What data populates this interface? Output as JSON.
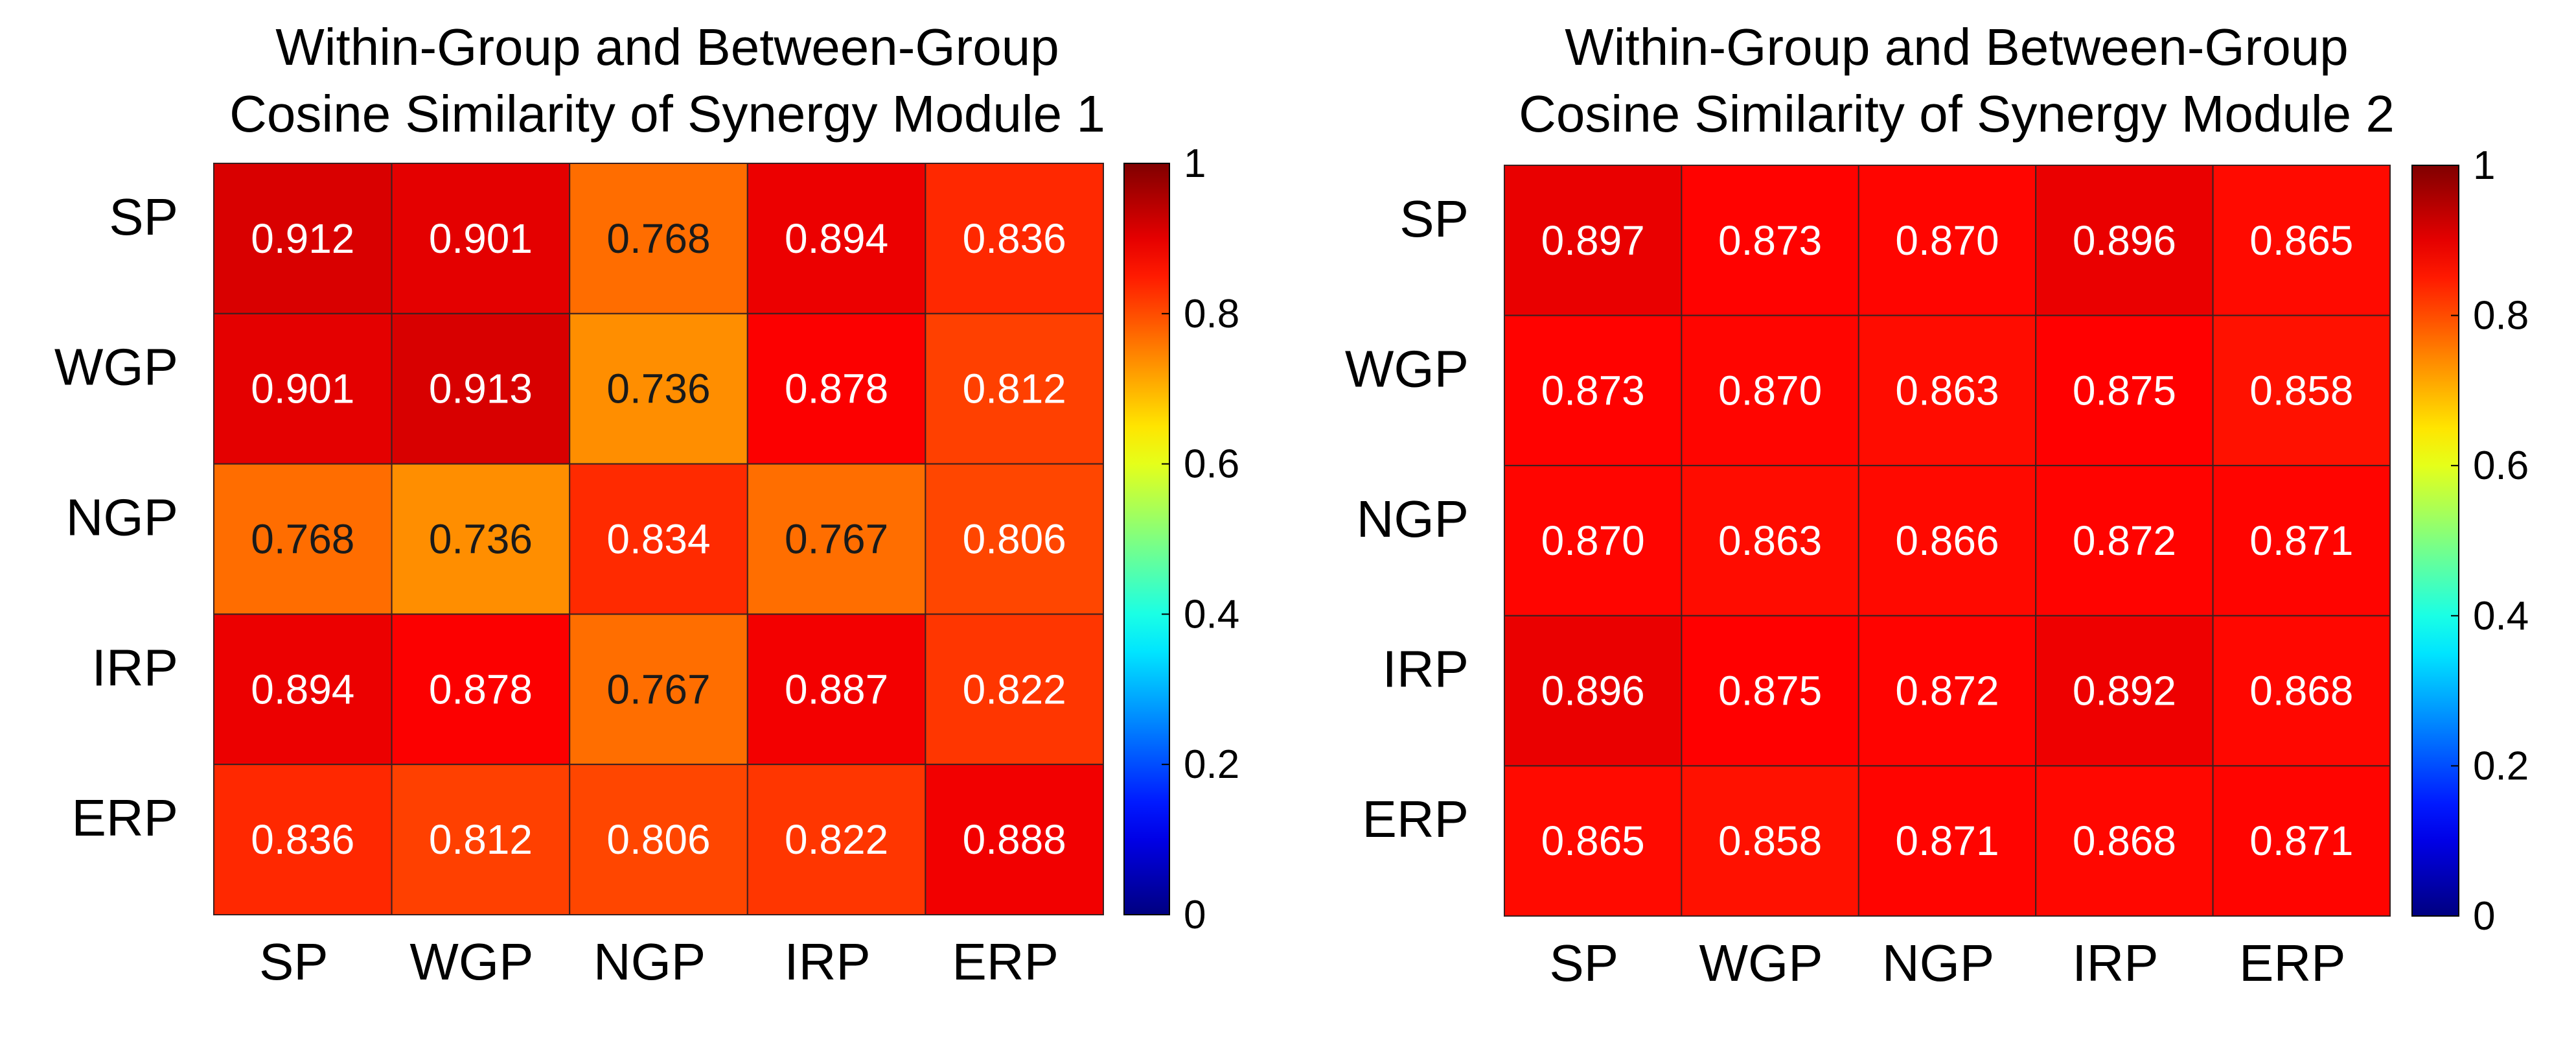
{
  "colormap": "jet",
  "colors": {
    "background": "#ffffff",
    "cell_border": "#3a2020",
    "label_light": "#ffffff",
    "label_dark": "#1a1a1a"
  },
  "chart_data": [
    {
      "type": "heatmap",
      "title": [
        "Within-Group and Between-Group",
        "Cosine Similarity of Synergy Module 1"
      ],
      "xlabel": "",
      "ylabel": "",
      "rows": [
        "SP",
        "WGP",
        "NGP",
        "IRP",
        "ERP"
      ],
      "columns": [
        "SP",
        "WGP",
        "NGP",
        "IRP",
        "ERP"
      ],
      "values": [
        [
          0.912,
          0.901,
          0.768,
          0.894,
          0.836
        ],
        [
          0.901,
          0.913,
          0.736,
          0.878,
          0.812
        ],
        [
          0.768,
          0.736,
          0.834,
          0.767,
          0.806
        ],
        [
          0.894,
          0.878,
          0.767,
          0.887,
          0.822
        ],
        [
          0.836,
          0.812,
          0.806,
          0.822,
          0.888
        ]
      ],
      "value_labels": [
        [
          "0.912",
          "0.901",
          "0.768",
          "0.894",
          "0.836"
        ],
        [
          "0.901",
          "0.913",
          "0.736",
          "0.878",
          "0.812"
        ],
        [
          "0.768",
          "0.736",
          "0.834",
          "0.767",
          "0.806"
        ],
        [
          "0.894",
          "0.878",
          "0.767",
          "0.887",
          "0.822"
        ],
        [
          "0.836",
          "0.812",
          "0.806",
          "0.822",
          "0.888"
        ]
      ],
      "colorbar": {
        "range": [
          0,
          1
        ],
        "ticks": [
          "0",
          "0.2",
          "0.4",
          "0.6",
          "0.8",
          "1"
        ]
      }
    },
    {
      "type": "heatmap",
      "title": [
        "Within-Group and Between-Group",
        "Cosine Similarity of Synergy Module 2"
      ],
      "xlabel": "",
      "ylabel": "",
      "rows": [
        "SP",
        "WGP",
        "NGP",
        "IRP",
        "ERP"
      ],
      "columns": [
        "SP",
        "WGP",
        "NGP",
        "IRP",
        "ERP"
      ],
      "values": [
        [
          0.897,
          0.873,
          0.87,
          0.896,
          0.865
        ],
        [
          0.873,
          0.87,
          0.863,
          0.875,
          0.858
        ],
        [
          0.87,
          0.863,
          0.866,
          0.872,
          0.871
        ],
        [
          0.896,
          0.875,
          0.872,
          0.892,
          0.868
        ],
        [
          0.865,
          0.858,
          0.871,
          0.868,
          0.871
        ]
      ],
      "value_labels": [
        [
          "0.897",
          "0.873",
          "0.870",
          "0.896",
          "0.865"
        ],
        [
          "0.873",
          "0.870",
          "0.863",
          "0.875",
          "0.858"
        ],
        [
          "0.870",
          "0.863",
          "0.866",
          "0.872",
          "0.871"
        ],
        [
          "0.896",
          "0.875",
          "0.872",
          "0.892",
          "0.868"
        ],
        [
          "0.865",
          "0.858",
          "0.871",
          "0.868",
          "0.871"
        ]
      ],
      "colorbar": {
        "range": [
          0,
          1
        ],
        "ticks": [
          "0",
          "0.2",
          "0.4",
          "0.6",
          "0.8",
          "1"
        ]
      }
    }
  ]
}
